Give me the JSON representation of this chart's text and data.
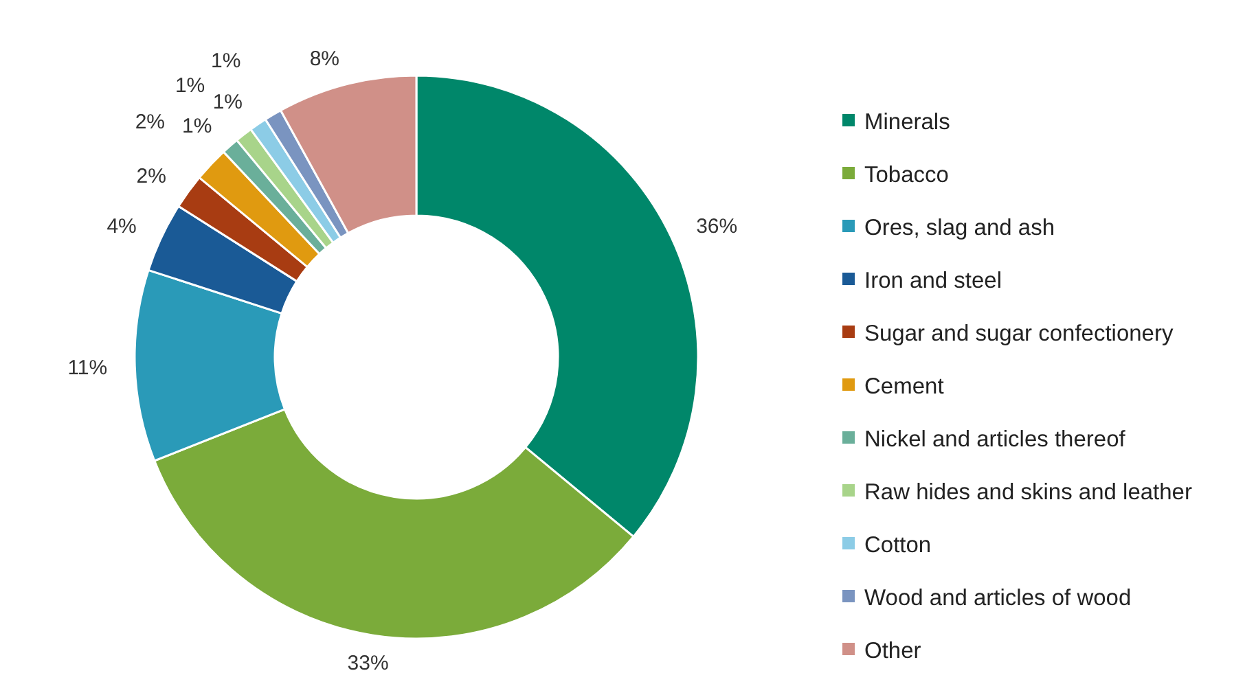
{
  "chart_data": {
    "type": "donut",
    "categories": [
      "Minerals",
      "Tobacco",
      "Ores, slag and ash",
      "Iron and steel",
      "Sugar and sugar confectionery",
      "Cement",
      "Nickel and articles thereof",
      "Raw hides and skins and leather",
      "Cotton",
      "Wood and articles of wood",
      "Other"
    ],
    "values": [
      36,
      33,
      11,
      4,
      2,
      2,
      1,
      1,
      1,
      1,
      8
    ],
    "colors": [
      "#00876a",
      "#7bab3a",
      "#2a9ab8",
      "#1a5a96",
      "#a83c12",
      "#e09a10",
      "#6aaf9a",
      "#a8d48a",
      "#8ccce6",
      "#7a94c0",
      "#d09088"
    ],
    "value_labels": [
      "36%",
      "33%",
      "11%",
      "4%",
      "2%",
      "2%",
      "1%",
      "1%",
      "1%",
      "1%",
      "8%"
    ],
    "legend": "right"
  }
}
